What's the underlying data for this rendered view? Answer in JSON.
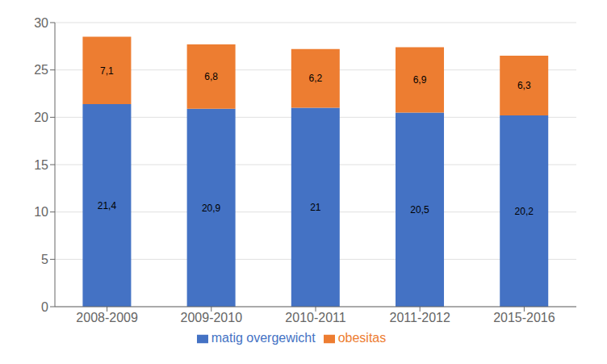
{
  "chart_data": {
    "type": "bar",
    "stacked": true,
    "categories": [
      "2008-2009",
      "2009-2010",
      "2010-2011",
      "2011-2012",
      "2015-2016"
    ],
    "series": [
      {
        "name": "matig overgewicht",
        "color": "#4472C4",
        "values": [
          21.4,
          20.9,
          21.0,
          20.5,
          20.2
        ],
        "value_labels": [
          "21,4",
          "20,9",
          "21",
          "20,5",
          "20,2"
        ]
      },
      {
        "name": "obesitas",
        "color": "#ED7D31",
        "values": [
          7.1,
          6.8,
          6.2,
          6.9,
          6.3
        ],
        "value_labels": [
          "7,1",
          "6,8",
          "6,2",
          "6,9",
          "6,3"
        ]
      }
    ],
    "ylim": [
      0,
      30
    ],
    "yticks": [
      0,
      5,
      10,
      15,
      20,
      25,
      30
    ],
    "grid": true,
    "legend": "bottom",
    "data_labels": true
  }
}
